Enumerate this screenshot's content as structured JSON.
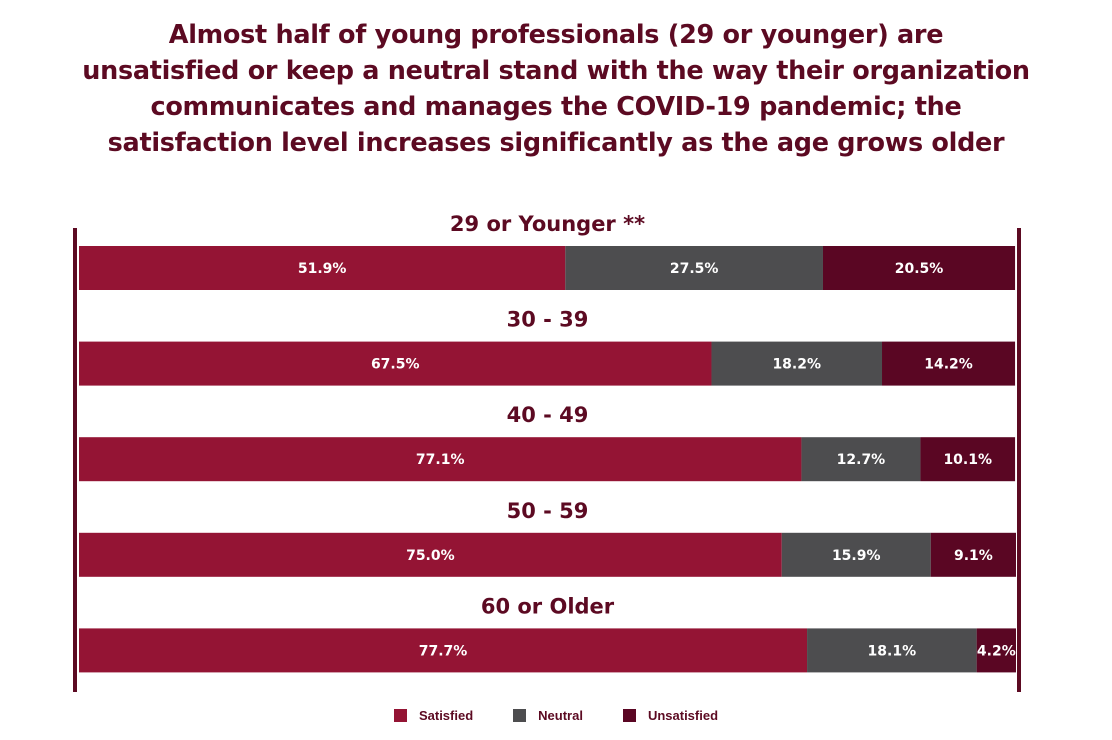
{
  "title_lines": [
    "Almost half of young professionals (29 or younger) are",
    "unsatisfied or keep a neutral stand with the way their organization",
    "communicates and manages the COVID-19 pandemic; the",
    "satisfaction level increases significantly as the age grows older"
  ],
  "colors": {
    "satisfied": "#941434",
    "neutral": "#4d4d4f",
    "unsatisfied": "#5a0623",
    "axis": "#5c0a22",
    "text_dark": "#5c0a22",
    "bar_label": "#ffffff"
  },
  "chart_data": {
    "type": "bar",
    "orientation": "horizontal",
    "stacked": true,
    "normalized_percent": true,
    "categories": [
      "29 or Younger **",
      "30 - 39",
      "40 - 49",
      "50 - 59",
      "60 or Older"
    ],
    "series": [
      {
        "name": "Satisfied",
        "values": [
          51.9,
          67.5,
          77.1,
          75.0,
          77.7
        ],
        "labels": [
          "51.9%",
          "67.5%",
          "77.1%",
          "75.0%",
          "77.7%"
        ]
      },
      {
        "name": "Neutral",
        "values": [
          27.5,
          18.2,
          12.7,
          15.9,
          18.1
        ],
        "labels": [
          "27.5%",
          "18.2%",
          "12.7%",
          "15.9%",
          "18.1%"
        ]
      },
      {
        "name": "Unsatisfied",
        "values": [
          20.5,
          14.2,
          10.1,
          9.1,
          4.2
        ],
        "labels": [
          "20.5%",
          "14.2%",
          "10.1%",
          "9.1%",
          "4.2%"
        ]
      }
    ],
    "xlim": [
      0,
      100
    ],
    "grid": false,
    "legend_position": "bottom-center"
  },
  "legend": [
    {
      "label": "Satisfied",
      "color": "#941434"
    },
    {
      "label": "Neutral",
      "color": "#4d4d4f"
    },
    {
      "label": "Unsatisfied",
      "color": "#5a0623"
    }
  ]
}
